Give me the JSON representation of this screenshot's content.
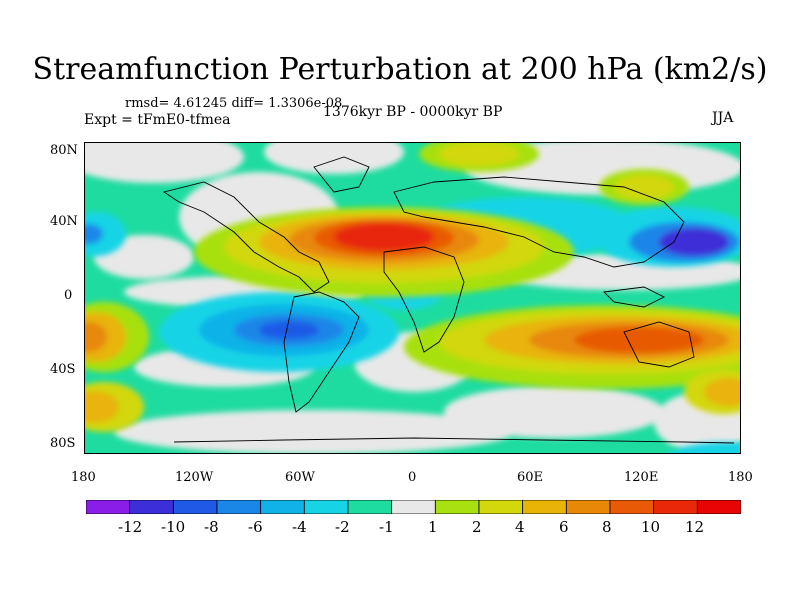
{
  "title": "Streamfunction Perturbation at 200 hPa (km2/s)",
  "stats": "rmsd= 4.61245  diff= 1.3306e-08",
  "experiment": "Expt = tFmE0-tfmea",
  "period": "1376kyr BP - 0000kyr BP",
  "season": "JJA",
  "lat_labels": [
    "80N",
    "40N",
    "0",
    "40S",
    "80S"
  ],
  "lon_labels": [
    "180",
    "120W",
    "60W",
    "0",
    "60E",
    "120E",
    "180"
  ],
  "colorbar": {
    "labels": [
      "-12",
      "-10",
      "-8",
      "-6",
      "-4",
      "-2",
      "-1",
      "1",
      "2",
      "4",
      "6",
      "8",
      "10",
      "12"
    ],
    "colors": [
      "#8a1ee8",
      "#3c2ed8",
      "#1e5ae6",
      "#1a86e8",
      "#10b2e8",
      "#16d4e6",
      "#1edca0",
      "#e8e8e8",
      "#a8e010",
      "#d2d80c",
      "#e8b408",
      "#e88808",
      "#e85a06",
      "#e82808",
      "#e80404"
    ]
  }
}
